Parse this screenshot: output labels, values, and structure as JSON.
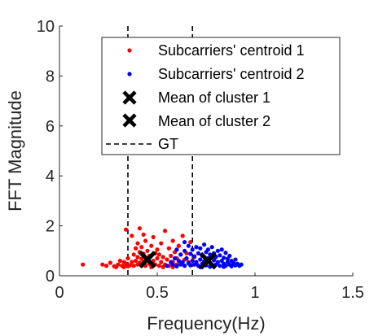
{
  "chart_data": {
    "type": "scatter",
    "xlabel": "Frequency(Hz)",
    "ylabel": "FFT Magnitude",
    "xlim": [
      0,
      1.5
    ],
    "ylim": [
      0,
      10
    ],
    "xticks": [
      "0",
      "0.5",
      "1",
      "1.5"
    ],
    "yticks": [
      "0",
      "2",
      "4",
      "6",
      "8",
      "10"
    ],
    "grid": false,
    "legend_position": "top-right",
    "series": [
      {
        "name": "Subcarriers' centroid 1",
        "marker": "dot",
        "color": "#ff0000",
        "points": [
          [
            0.12,
            0.45
          ],
          [
            0.24,
            0.4
          ],
          [
            0.26,
            0.52
          ],
          [
            0.28,
            0.38
          ],
          [
            0.3,
            0.45
          ],
          [
            0.31,
            0.6
          ],
          [
            0.32,
            0.4
          ],
          [
            0.33,
            0.55
          ],
          [
            0.34,
            0.48
          ],
          [
            0.35,
            0.38
          ],
          [
            0.35,
            0.7
          ],
          [
            0.36,
            0.42
          ],
          [
            0.37,
            0.55
          ],
          [
            0.37,
            1.6
          ],
          [
            0.38,
            0.4
          ],
          [
            0.38,
            0.85
          ],
          [
            0.39,
            0.6
          ],
          [
            0.39,
            1.1
          ],
          [
            0.4,
            0.45
          ],
          [
            0.4,
            0.75
          ],
          [
            0.4,
            1.3
          ],
          [
            0.41,
            0.52
          ],
          [
            0.41,
            0.95
          ],
          [
            0.41,
            1.9
          ],
          [
            0.42,
            0.4
          ],
          [
            0.42,
            0.68
          ],
          [
            0.42,
            1.15
          ],
          [
            0.43,
            0.55
          ],
          [
            0.43,
            0.88
          ],
          [
            0.44,
            0.4
          ],
          [
            0.44,
            1.4
          ],
          [
            0.45,
            0.65
          ],
          [
            0.45,
            1.0
          ],
          [
            0.46,
            0.48
          ],
          [
            0.46,
            0.8
          ],
          [
            0.47,
            1.2
          ],
          [
            0.47,
            0.42
          ],
          [
            0.48,
            0.6
          ],
          [
            0.48,
            1.55
          ],
          [
            0.49,
            0.9
          ],
          [
            0.49,
            0.45
          ],
          [
            0.5,
            0.7
          ],
          [
            0.5,
            1.05
          ],
          [
            0.51,
            0.4
          ],
          [
            0.51,
            0.85
          ],
          [
            0.52,
            0.55
          ],
          [
            0.52,
            1.3
          ],
          [
            0.53,
            0.75
          ],
          [
            0.54,
            0.45
          ],
          [
            0.54,
            1.8
          ],
          [
            0.55,
            0.65
          ],
          [
            0.56,
            1.1
          ],
          [
            0.56,
            0.4
          ],
          [
            0.57,
            0.8
          ],
          [
            0.58,
            0.55
          ],
          [
            0.58,
            1.4
          ],
          [
            0.59,
            0.95
          ],
          [
            0.6,
            0.45
          ],
          [
            0.6,
            0.7
          ],
          [
            0.61,
            1.2
          ],
          [
            0.62,
            0.5
          ],
          [
            0.62,
            0.85
          ],
          [
            0.63,
            1.6
          ],
          [
            0.64,
            0.4
          ],
          [
            0.64,
            0.65
          ],
          [
            0.65,
            0.9
          ],
          [
            0.66,
            0.55
          ],
          [
            0.67,
            1.35
          ],
          [
            0.68,
            0.45
          ],
          [
            0.69,
            0.75
          ],
          [
            0.7,
            0.5
          ],
          [
            0.7,
            1.15
          ],
          [
            0.47,
            0.35
          ],
          [
            0.53,
            0.35
          ],
          [
            0.58,
            0.35
          ],
          [
            0.29,
            0.35
          ],
          [
            0.33,
            0.35
          ],
          [
            0.22,
            0.45
          ],
          [
            0.43,
            1.65
          ],
          [
            0.34,
            1.85
          ]
        ]
      },
      {
        "name": "Subcarriers' centroid 2",
        "marker": "dot",
        "color": "#0000ff",
        "points": [
          [
            0.55,
            0.4
          ],
          [
            0.57,
            0.55
          ],
          [
            0.58,
            0.45
          ],
          [
            0.59,
            0.7
          ],
          [
            0.6,
            0.38
          ],
          [
            0.61,
            0.6
          ],
          [
            0.62,
            0.85
          ],
          [
            0.62,
            0.45
          ],
          [
            0.63,
            0.55
          ],
          [
            0.64,
            1.0
          ],
          [
            0.64,
            0.4
          ],
          [
            0.65,
            0.7
          ],
          [
            0.66,
            0.5
          ],
          [
            0.66,
            1.2
          ],
          [
            0.67,
            0.88
          ],
          [
            0.67,
            0.42
          ],
          [
            0.68,
            0.6
          ],
          [
            0.68,
            1.05
          ],
          [
            0.69,
            0.45
          ],
          [
            0.69,
            0.78
          ],
          [
            0.7,
            0.55
          ],
          [
            0.7,
            1.15
          ],
          [
            0.71,
            0.4
          ],
          [
            0.71,
            0.9
          ],
          [
            0.72,
            0.65
          ],
          [
            0.72,
            1.1
          ],
          [
            0.73,
            0.48
          ],
          [
            0.73,
            0.8
          ],
          [
            0.74,
            0.58
          ],
          [
            0.74,
            1.25
          ],
          [
            0.75,
            0.42
          ],
          [
            0.75,
            0.95
          ],
          [
            0.76,
            0.7
          ],
          [
            0.76,
            1.05
          ],
          [
            0.77,
            0.52
          ],
          [
            0.77,
            0.85
          ],
          [
            0.78,
            0.4
          ],
          [
            0.78,
            1.15
          ],
          [
            0.79,
            0.62
          ],
          [
            0.79,
            0.9
          ],
          [
            0.8,
            0.45
          ],
          [
            0.8,
            0.75
          ],
          [
            0.81,
            1.0
          ],
          [
            0.81,
            0.55
          ],
          [
            0.82,
            0.4
          ],
          [
            0.82,
            0.82
          ],
          [
            0.83,
            0.6
          ],
          [
            0.83,
            1.05
          ],
          [
            0.84,
            0.48
          ],
          [
            0.84,
            0.72
          ],
          [
            0.85,
            0.4
          ],
          [
            0.85,
            0.92
          ],
          [
            0.86,
            0.55
          ],
          [
            0.86,
            0.68
          ],
          [
            0.87,
            0.45
          ],
          [
            0.87,
            0.8
          ],
          [
            0.88,
            0.38
          ],
          [
            0.88,
            0.6
          ],
          [
            0.89,
            0.5
          ],
          [
            0.9,
            0.42
          ],
          [
            0.9,
            0.65
          ],
          [
            0.91,
            0.48
          ],
          [
            0.92,
            0.4
          ],
          [
            0.93,
            0.45
          ],
          [
            0.64,
            1.35
          ],
          [
            0.6,
            1.05
          ],
          [
            0.72,
            0.35
          ],
          [
            0.77,
            0.36
          ],
          [
            0.84,
            0.36
          ]
        ]
      },
      {
        "name": "Mean of cluster 1",
        "marker": "x",
        "color": "#000000",
        "points": [
          [
            0.45,
            0.65
          ]
        ]
      },
      {
        "name": "Mean of cluster 2",
        "marker": "x",
        "color": "#000000",
        "points": [
          [
            0.76,
            0.6
          ]
        ]
      },
      {
        "name": "GT",
        "marker": "dashed-vline",
        "color": "#000000",
        "x": [
          0.35,
          0.68
        ]
      }
    ]
  }
}
